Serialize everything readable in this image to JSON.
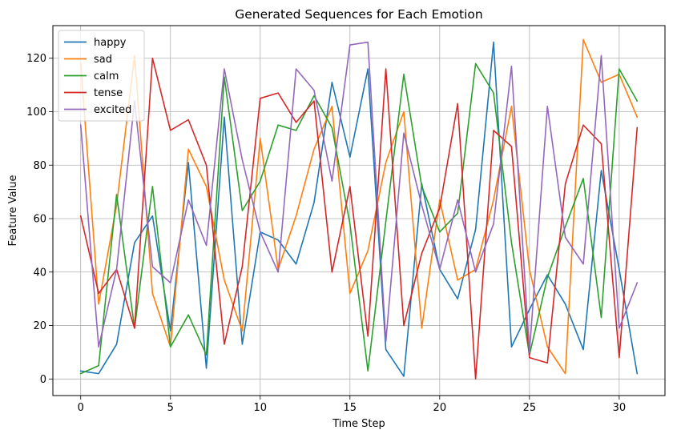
{
  "chart_data": {
    "type": "line",
    "title": "Generated Sequences for Each Emotion",
    "xlabel": "Time Step",
    "ylabel": "Feature Value",
    "xlim": [
      -1.55,
      32.55
    ],
    "ylim": [
      -6.2,
      132.2
    ],
    "xticks": [
      0,
      5,
      10,
      15,
      20,
      25,
      30
    ],
    "yticks": [
      0,
      20,
      40,
      60,
      80,
      100,
      120
    ],
    "grid": true,
    "legend_position": "top-left",
    "x": [
      0,
      1,
      2,
      3,
      4,
      5,
      6,
      7,
      8,
      9,
      10,
      11,
      12,
      13,
      14,
      15,
      16,
      17,
      18,
      19,
      20,
      21,
      22,
      23,
      24,
      25,
      26,
      27,
      28,
      29,
      30,
      31
    ],
    "series": [
      {
        "name": "happy",
        "color": "#1f77b4",
        "values": [
          3,
          2,
          13,
          51,
          61,
          18,
          81,
          4,
          98,
          13,
          55,
          52,
          43,
          66,
          111,
          83,
          116,
          11,
          1,
          73,
          41,
          30,
          56,
          126,
          12,
          26,
          39,
          28,
          11,
          78,
          41,
          2
        ]
      },
      {
        "name": "sad",
        "color": "#ff7f0e",
        "values": [
          118,
          28,
          65,
          121,
          32,
          12,
          86,
          72,
          37,
          18,
          90,
          41,
          61,
          86,
          102,
          32,
          48,
          81,
          100,
          19,
          67,
          37,
          41,
          67,
          102,
          41,
          12,
          2,
          127,
          111,
          114,
          98
        ]
      },
      {
        "name": "calm",
        "color": "#2ca02c",
        "values": [
          2,
          5,
          69,
          19,
          72,
          12,
          24,
          9,
          113,
          63,
          74,
          95,
          93,
          106,
          94,
          58,
          3,
          59,
          114,
          72,
          55,
          62,
          118,
          107,
          51,
          9,
          38,
          57,
          75,
          23,
          116,
          104
        ]
      },
      {
        "name": "tense",
        "color": "#d62728",
        "values": [
          61,
          32,
          41,
          19,
          120,
          93,
          97,
          80,
          13,
          42,
          105,
          107,
          96,
          104,
          40,
          72,
          16,
          116,
          20,
          47,
          64,
          103,
          0,
          93,
          87,
          8,
          6,
          73,
          95,
          88,
          8,
          94
        ]
      },
      {
        "name": "excited",
        "color": "#9467bd",
        "values": [
          95,
          12,
          41,
          104,
          42,
          36,
          67,
          50,
          116,
          82,
          55,
          40,
          116,
          108,
          74,
          125,
          126,
          14,
          92,
          65,
          41,
          67,
          40,
          58,
          117,
          10,
          102,
          53,
          43,
          121,
          19,
          36
        ]
      }
    ]
  }
}
